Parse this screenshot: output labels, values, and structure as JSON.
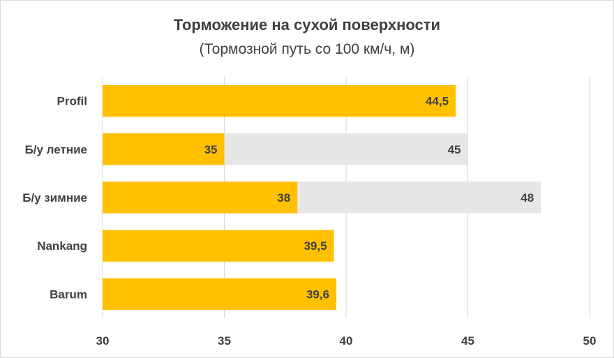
{
  "chart_data": {
    "type": "bar",
    "orientation": "horizontal",
    "title": "Торможение на сухой поверхности",
    "subtitle": "(Тормозной путь со 100 км/ч, м)",
    "xlabel": "",
    "ylabel": "",
    "xlim": [
      30,
      50
    ],
    "x_ticks": [
      30,
      35,
      40,
      45,
      50
    ],
    "grid": true,
    "legend": "none",
    "categories": [
      "Profil",
      "Б/у летние",
      "Б/у зимние",
      "Nankang",
      "Barum"
    ],
    "series": [
      {
        "color": "#ffc000",
        "values": [
          44.5,
          35,
          38,
          39.5,
          39.6
        ],
        "labels": [
          "44,5",
          "35",
          "38",
          "39,5",
          "39,6"
        ]
      },
      {
        "color": "#e7e6e6",
        "values": [
          null,
          45,
          48,
          null,
          null
        ],
        "labels": [
          "",
          "45",
          "48",
          "",
          ""
        ]
      }
    ]
  }
}
